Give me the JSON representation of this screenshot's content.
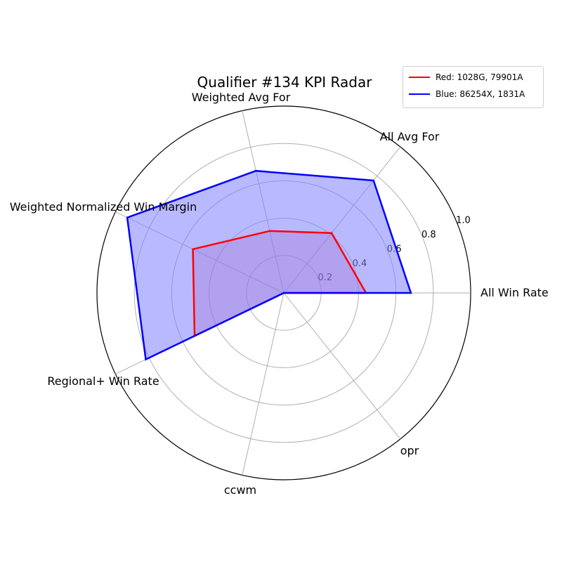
{
  "chart_data": {
    "type": "radar",
    "title": "Qualifier #134 KPI Radar",
    "axes": [
      "All Win Rate",
      "All Avg For",
      "Weighted Avg For",
      "Weighted Normalized Win Margin",
      "Regional+ Win Rate",
      "ccwm",
      "opr"
    ],
    "radial_ticks": [
      "0.2",
      "0.4",
      "0.6",
      "0.8",
      "1.0"
    ],
    "rlim": [
      0,
      1.0
    ],
    "grid": true,
    "legend_position": "top-right",
    "series": [
      {
        "name": "Red: 1028G, 79901A",
        "color": "#ff0000",
        "fill": "none",
        "values": [
          0.44,
          0.41,
          0.34,
          0.54,
          0.53,
          0.0,
          0.0
        ]
      },
      {
        "name": "Blue: 86254X, 1831A",
        "color": "#0000ff",
        "fill": "#8080ff",
        "values": [
          0.68,
          0.77,
          0.67,
          0.93,
          0.82,
          0.0,
          0.0
        ]
      }
    ]
  }
}
